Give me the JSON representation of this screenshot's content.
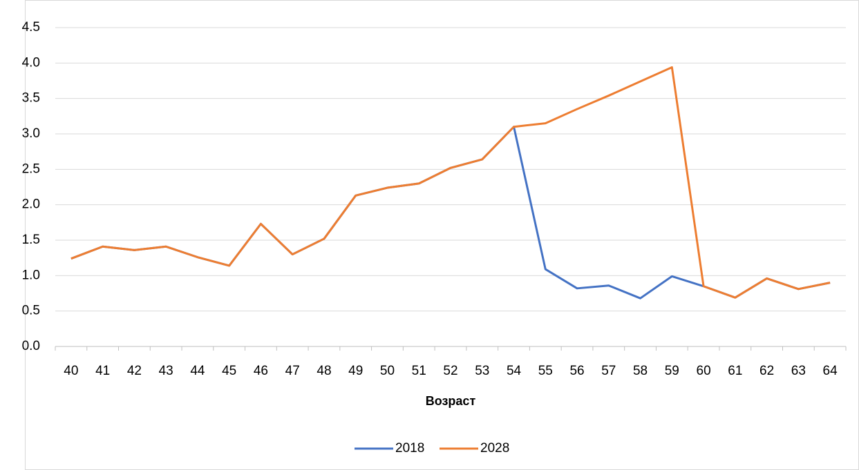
{
  "chart_data": {
    "type": "line",
    "x_label": "Возраст",
    "categories": [
      "40",
      "41",
      "42",
      "43",
      "44",
      "45",
      "46",
      "47",
      "48",
      "49",
      "50",
      "51",
      "52",
      "53",
      "54",
      "55",
      "56",
      "57",
      "58",
      "59",
      "60",
      "61",
      "62",
      "63",
      "64"
    ],
    "series": [
      {
        "name": "2018",
        "color": "#4472c4",
        "values": [
          1.24,
          1.41,
          1.36,
          1.41,
          1.26,
          1.14,
          1.73,
          1.3,
          1.52,
          2.13,
          2.24,
          2.3,
          2.52,
          2.64,
          3.1,
          1.09,
          0.82,
          0.86,
          0.68,
          0.99,
          0.85,
          0.69,
          0.96,
          0.81,
          0.9
        ]
      },
      {
        "name": "2028",
        "color": "#ed7d31",
        "values": [
          1.24,
          1.41,
          1.36,
          1.41,
          1.26,
          1.14,
          1.73,
          1.3,
          1.52,
          2.13,
          2.24,
          2.3,
          2.52,
          2.64,
          3.1,
          3.15,
          3.35,
          3.54,
          3.74,
          3.94,
          0.85,
          0.69,
          0.96,
          0.81,
          0.9
        ]
      }
    ],
    "ylim": [
      0,
      4.5
    ],
    "yticks": [
      {
        "value": 0,
        "label": "0.0"
      },
      0.5,
      {
        "value": 1,
        "label": "1.0"
      },
      1.5,
      {
        "value": 2,
        "label": "2.0"
      },
      2.5,
      {
        "value": 3,
        "label": "3.0"
      },
      3.5,
      {
        "value": 4,
        "label": "4.0"
      },
      4.5
    ],
    "grid": true,
    "legend": "bottom"
  }
}
